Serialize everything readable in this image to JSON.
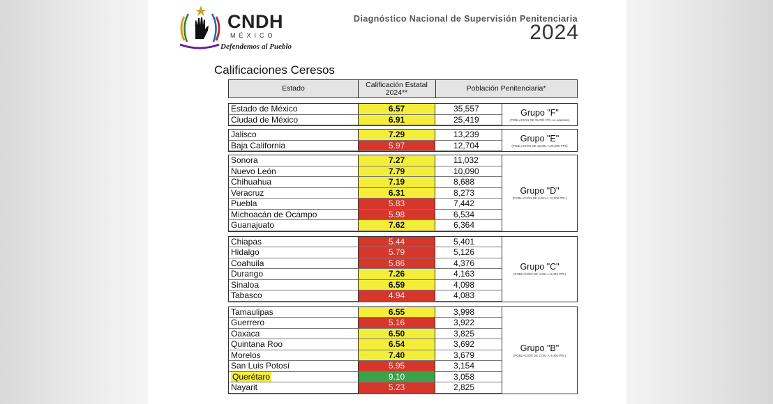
{
  "logo": {
    "name": "CNDH",
    "country": "MÉXICO",
    "slogan": "Defendemos al Pueblo"
  },
  "header": {
    "title": "Diagnóstico Nacional de Supervisión Penitenciaria",
    "year": "2024"
  },
  "section_title": "Calificaciones Ceresos",
  "table": {
    "columns": [
      "Estado",
      "Calificación Estatal 2024**",
      "Población Penitenciaria*"
    ],
    "groups": [
      {
        "name": "Grupo \"F\"",
        "note": "(POBLACIÓN DE 25,001 PPL en adelante)",
        "rows": [
          {
            "estado": "Estado de México",
            "calificacion": "6.57",
            "color": "yellow",
            "poblacion": "35,557"
          },
          {
            "estado": "Ciudad de México",
            "calificacion": "6.91",
            "color": "yellow",
            "poblacion": "25,419"
          }
        ]
      },
      {
        "name": "Grupo \"E\"",
        "note": "(POBLACIÓN DE 12,001 A 25,000 PPL)",
        "rows": [
          {
            "estado": "Jalisco",
            "calificacion": "7.29",
            "color": "yellow",
            "poblacion": "13,239"
          },
          {
            "estado": "Baja California",
            "calificacion": "5.97",
            "color": "red",
            "poblacion": "12,704"
          }
        ]
      },
      {
        "name": "Grupo \"D\"",
        "note": "(POBLACIÓN DE 6,001 A 12,000 PPL)",
        "rows": [
          {
            "estado": "Sonora",
            "calificacion": "7.27",
            "color": "yellow",
            "poblacion": "11,032"
          },
          {
            "estado": "Nuevo León",
            "calificacion": "7.79",
            "color": "yellow",
            "poblacion": "10,090"
          },
          {
            "estado": "Chihuahua",
            "calificacion": "7.19",
            "color": "yellow",
            "poblacion": "8,688"
          },
          {
            "estado": "Veracruz",
            "calificacion": "6.31",
            "color": "yellow",
            "poblacion": "8,273"
          },
          {
            "estado": "Puebla",
            "calificacion": "5.83",
            "color": "red",
            "poblacion": "7,442"
          },
          {
            "estado": "Michoacán de Ocampo",
            "calificacion": "5.98",
            "color": "red",
            "poblacion": "6,534"
          },
          {
            "estado": "Guanajuato",
            "calificacion": "7.62",
            "color": "yellow",
            "poblacion": "6,364"
          }
        ]
      },
      {
        "name": "Grupo \"C\"",
        "note": "(POBLACIÓN DE 4,001 A 6,000 PPL)",
        "rows": [
          {
            "estado": "Chiapas",
            "calificacion": "5.44",
            "color": "red",
            "poblacion": "5,401"
          },
          {
            "estado": "Hidalgo",
            "calificacion": "5.79",
            "color": "red",
            "poblacion": "5,126"
          },
          {
            "estado": "Coahuila",
            "calificacion": "5.86",
            "color": "red",
            "poblacion": "4,376"
          },
          {
            "estado": "Durango",
            "calificacion": "7.26",
            "color": "yellow",
            "poblacion": "4,163"
          },
          {
            "estado": "Sinaloa",
            "calificacion": "6.59",
            "color": "yellow",
            "poblacion": "4,098"
          },
          {
            "estado": "Tabasco",
            "calificacion": "4.94",
            "color": "red",
            "poblacion": "4,083"
          }
        ]
      },
      {
        "name": "Grupo \"B\"",
        "note": "(POBLACIÓN DE 2,001 A 4,000 PPL)",
        "rows": [
          {
            "estado": "Tamaulipas",
            "calificacion": "6.55",
            "color": "yellow",
            "poblacion": "3,998"
          },
          {
            "estado": "Guerrero",
            "calificacion": "5.16",
            "color": "red",
            "poblacion": "3,922"
          },
          {
            "estado": "Oaxaca",
            "calificacion": "6.50",
            "color": "yellow",
            "poblacion": "3,825"
          },
          {
            "estado": "Quintana Roo",
            "calificacion": "6.54",
            "color": "yellow",
            "poblacion": "3,692"
          },
          {
            "estado": "Morelos",
            "calificacion": "7.40",
            "color": "yellow",
            "poblacion": "3,679"
          },
          {
            "estado": "San Luis Potosí",
            "calificacion": "5.95",
            "color": "red",
            "poblacion": "3,154"
          },
          {
            "estado": "Querétaro",
            "calificacion": "9.10",
            "color": "green",
            "poblacion": "3,058",
            "highlight": true
          },
          {
            "estado": "Nayarit",
            "calificacion": "5.23",
            "color": "red",
            "poblacion": "2,825"
          }
        ]
      }
    ]
  },
  "colors": {
    "yellow": "#f4ee3a",
    "red": "#d6372c",
    "green": "#3aa24a",
    "header_bg": "#e4e4e4"
  }
}
